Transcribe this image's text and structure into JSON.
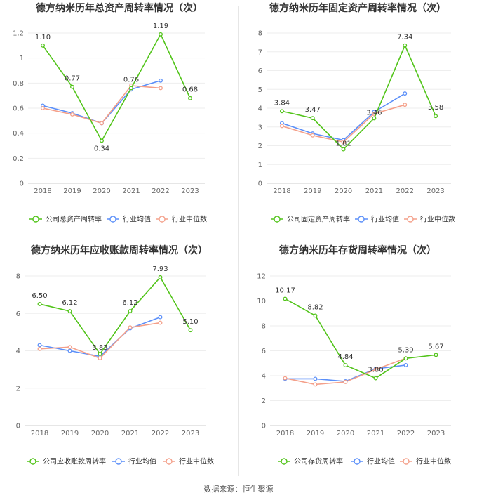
{
  "chart_data": [
    {
      "type": "line",
      "title": "德方纳米历年总资产周转率情况（次）",
      "categories": [
        "2018",
        "2019",
        "2020",
        "2021",
        "2022",
        "2023"
      ],
      "ylim": [
        0,
        1.2
      ],
      "yticks": [
        "0",
        "0.2",
        "0.4",
        "0.6",
        "0.8",
        "1",
        "1.2"
      ],
      "series": [
        {
          "name": "公司总资产周转率",
          "color": "#52c41a",
          "values": [
            1.1,
            0.77,
            0.34,
            0.76,
            1.19,
            0.68
          ],
          "labels": [
            "1.10",
            "0.77",
            "0.34",
            "0.76",
            "1.19",
            "0.68"
          ]
        },
        {
          "name": "行业均值",
          "color": "#5b8ff9",
          "values": [
            0.62,
            0.56,
            0.48,
            0.75,
            0.82,
            null
          ]
        },
        {
          "name": "行业中位数",
          "color": "#f4a08a",
          "values": [
            0.6,
            0.55,
            0.48,
            0.78,
            0.76,
            null
          ]
        }
      ]
    },
    {
      "type": "line",
      "title": "德方纳米历年固定资产周转率情况（次）",
      "categories": [
        "2018",
        "2019",
        "2020",
        "2021",
        "2022",
        "2023"
      ],
      "ylim": [
        0,
        8
      ],
      "yticks": [
        "0",
        "1",
        "2",
        "3",
        "4",
        "5",
        "6",
        "7",
        "8"
      ],
      "series": [
        {
          "name": "公司固定资产周转率",
          "color": "#52c41a",
          "values": [
            3.84,
            3.47,
            1.81,
            3.46,
            7.34,
            3.58
          ],
          "labels": [
            "3.84",
            "3.47",
            "1.81",
            "3.46",
            "7.34",
            "3.58"
          ]
        },
        {
          "name": "行业均值",
          "color": "#5b8ff9",
          "values": [
            3.2,
            2.65,
            2.3,
            3.8,
            4.78,
            null
          ]
        },
        {
          "name": "行业中位数",
          "color": "#f4a08a",
          "values": [
            3.05,
            2.55,
            2.2,
            3.7,
            4.18,
            null
          ]
        }
      ]
    },
    {
      "type": "line",
      "title": "德方纳米历年应收账款周转率情况（次）",
      "categories": [
        "2018",
        "2019",
        "2020",
        "2021",
        "2022",
        "2023"
      ],
      "ylim": [
        0,
        8
      ],
      "yticks": [
        "0",
        "2",
        "4",
        "6",
        "8"
      ],
      "series": [
        {
          "name": "公司应收账款周转率",
          "color": "#52c41a",
          "values": [
            6.5,
            6.12,
            3.83,
            6.12,
            7.93,
            5.1
          ],
          "labels": [
            "6.50",
            "6.12",
            "3.83",
            "6.12",
            "7.93",
            "5.10"
          ]
        },
        {
          "name": "行业均值",
          "color": "#5b8ff9",
          "values": [
            4.3,
            4.0,
            3.7,
            5.2,
            5.8,
            null
          ]
        },
        {
          "name": "行业中位数",
          "color": "#f4a08a",
          "values": [
            4.1,
            4.2,
            3.6,
            5.25,
            5.5,
            null
          ]
        }
      ]
    },
    {
      "type": "line",
      "title": "德方纳米历年存货周转率情况（次）",
      "categories": [
        "2018",
        "2019",
        "2020",
        "2021",
        "2022",
        "2023"
      ],
      "ylim": [
        0,
        12
      ],
      "yticks": [
        "0",
        "2",
        "4",
        "6",
        "8",
        "10",
        "12"
      ],
      "series": [
        {
          "name": "公司存货周转率",
          "color": "#52c41a",
          "values": [
            10.17,
            8.82,
            4.84,
            3.8,
            5.39,
            5.67
          ],
          "labels": [
            "10.17",
            "8.82",
            "4.84",
            "3.80",
            "5.39",
            "5.67"
          ]
        },
        {
          "name": "行业均值",
          "color": "#5b8ff9",
          "values": [
            3.75,
            3.75,
            3.55,
            4.55,
            4.85,
            null
          ]
        },
        {
          "name": "行业中位数",
          "color": "#f4a08a",
          "values": [
            3.8,
            3.3,
            3.5,
            4.5,
            5.4,
            null
          ]
        }
      ]
    }
  ],
  "footer": {
    "source": "数据来源：恒生聚源"
  }
}
